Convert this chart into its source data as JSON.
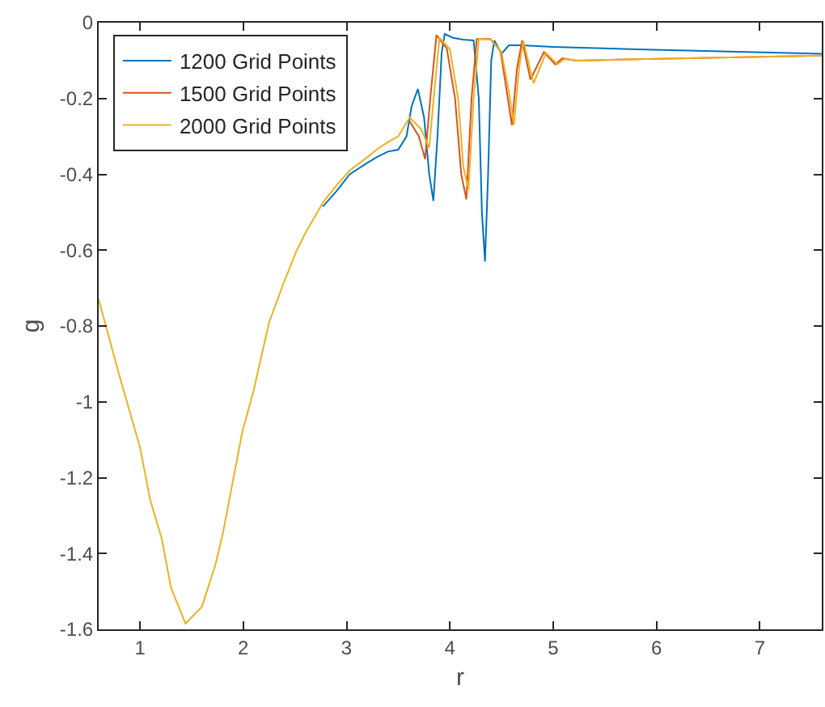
{
  "chart_data": {
    "type": "line",
    "xlabel": "r",
    "ylabel": "g",
    "xlim": [
      0.6,
      7.6
    ],
    "xticks": [
      1,
      2,
      3,
      4,
      5,
      6,
      7
    ],
    "ylim": [
      -1.6,
      0
    ],
    "yticks": [
      -1.6,
      -1.4,
      -1.2,
      -1,
      -0.8,
      -0.6,
      -0.4,
      -0.2,
      0
    ],
    "grid": false,
    "legend": "top left",
    "line_style": "solid",
    "marker": "none",
    "series": [
      {
        "name": "1200 Grid Points",
        "color": "#0072bd",
        "x": [
          2.77,
          2.9,
          3.03,
          3.2,
          3.29,
          3.4,
          3.5,
          3.58,
          3.63,
          3.69,
          3.75,
          3.8,
          3.84,
          3.88,
          3.92,
          3.95,
          4.03,
          4.13,
          4.23,
          4.28,
          4.31,
          4.34,
          4.37,
          4.4,
          4.43,
          4.5,
          4.57,
          4.7,
          5.0,
          5.9,
          7.6
        ],
        "values": [
          -0.485,
          -0.445,
          -0.4,
          -0.37,
          -0.355,
          -0.34,
          -0.335,
          -0.3,
          -0.22,
          -0.175,
          -0.25,
          -0.4,
          -0.47,
          -0.3,
          -0.08,
          -0.03,
          -0.04,
          -0.045,
          -0.047,
          -0.2,
          -0.5,
          -0.63,
          -0.4,
          -0.1,
          -0.047,
          -0.082,
          -0.06,
          -0.06,
          -0.064,
          -0.071,
          -0.082
        ]
      },
      {
        "name": "1500 Grid Points",
        "color": "#d95319",
        "x": [
          3.61,
          3.7,
          3.76,
          3.81,
          3.87,
          3.97,
          4.05,
          4.11,
          4.16,
          4.21,
          4.26,
          4.39,
          4.49,
          4.55,
          4.6,
          4.65,
          4.7,
          4.78,
          4.91,
          5.02,
          5.09,
          5.22,
          5.9,
          7.6
        ],
        "values": [
          -0.26,
          -0.3,
          -0.36,
          -0.2,
          -0.033,
          -0.068,
          -0.2,
          -0.4,
          -0.466,
          -0.2,
          -0.043,
          -0.043,
          -0.075,
          -0.18,
          -0.27,
          -0.12,
          -0.047,
          -0.15,
          -0.078,
          -0.11,
          -0.094,
          -0.1,
          -0.096,
          -0.087
        ]
      },
      {
        "name": "2000 Grid Points",
        "color": "#edb120",
        "x": [
          0.6,
          0.8,
          1.0,
          1.1,
          1.21,
          1.3,
          1.44,
          1.6,
          1.73,
          1.8,
          1.99,
          2.1,
          2.25,
          2.4,
          2.51,
          2.6,
          2.77,
          2.9,
          3.03,
          3.2,
          3.29,
          3.4,
          3.5,
          3.61,
          3.72,
          3.8,
          3.85,
          3.9,
          4.0,
          4.08,
          4.13,
          4.18,
          4.23,
          4.28,
          4.4,
          4.5,
          4.57,
          4.62,
          4.67,
          4.71,
          4.81,
          4.93,
          5.04,
          5.11,
          5.24,
          5.9,
          7.6
        ],
        "values": [
          -0.73,
          -0.93,
          -1.12,
          -1.26,
          -1.36,
          -1.49,
          -1.585,
          -1.54,
          -1.43,
          -1.35,
          -1.08,
          -0.97,
          -0.79,
          -0.68,
          -0.605,
          -0.555,
          -0.475,
          -0.43,
          -0.39,
          -0.355,
          -0.335,
          -0.315,
          -0.3,
          -0.25,
          -0.28,
          -0.33,
          -0.18,
          -0.04,
          -0.07,
          -0.2,
          -0.38,
          -0.44,
          -0.2,
          -0.043,
          -0.045,
          -0.078,
          -0.18,
          -0.27,
          -0.12,
          -0.047,
          -0.16,
          -0.08,
          -0.11,
          -0.096,
          -0.1,
          -0.096,
          -0.087
        ]
      }
    ]
  }
}
